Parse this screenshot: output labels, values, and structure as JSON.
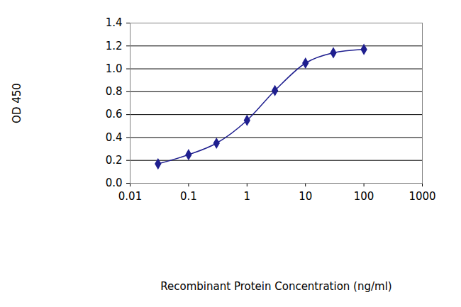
{
  "chart_data": {
    "type": "line",
    "x_label": "Recombinant Protein Concentration (ng/ml)",
    "y_label": "OD 450",
    "x": [
      0.03,
      0.1,
      0.3,
      1,
      3,
      10,
      30,
      100
    ],
    "values": [
      0.17,
      0.25,
      0.35,
      0.55,
      0.81,
      1.05,
      1.14,
      1.17
    ],
    "color": "#1f1f8f",
    "marker": "diamond",
    "line_style": "solid",
    "log": "x",
    "grid": true,
    "xlim": [
      0.01,
      1000
    ],
    "xticks": [
      0.01,
      0.1,
      1,
      10,
      100,
      1000
    ],
    "ylim": [
      0,
      1.4
    ],
    "yticks": [
      {
        "value": 0,
        "label": "0.0"
      },
      {
        "value": 0.2,
        "label": "0.2"
      },
      {
        "value": 0.4,
        "label": "0.4"
      },
      {
        "value": 0.6,
        "label": "0.6"
      },
      {
        "value": 0.8,
        "label": "0.8"
      },
      {
        "value": 1.0,
        "label": "1.0"
      },
      {
        "value": 1.2,
        "label": "1.2"
      },
      {
        "value": 1.4,
        "label": "1.4"
      }
    ]
  }
}
